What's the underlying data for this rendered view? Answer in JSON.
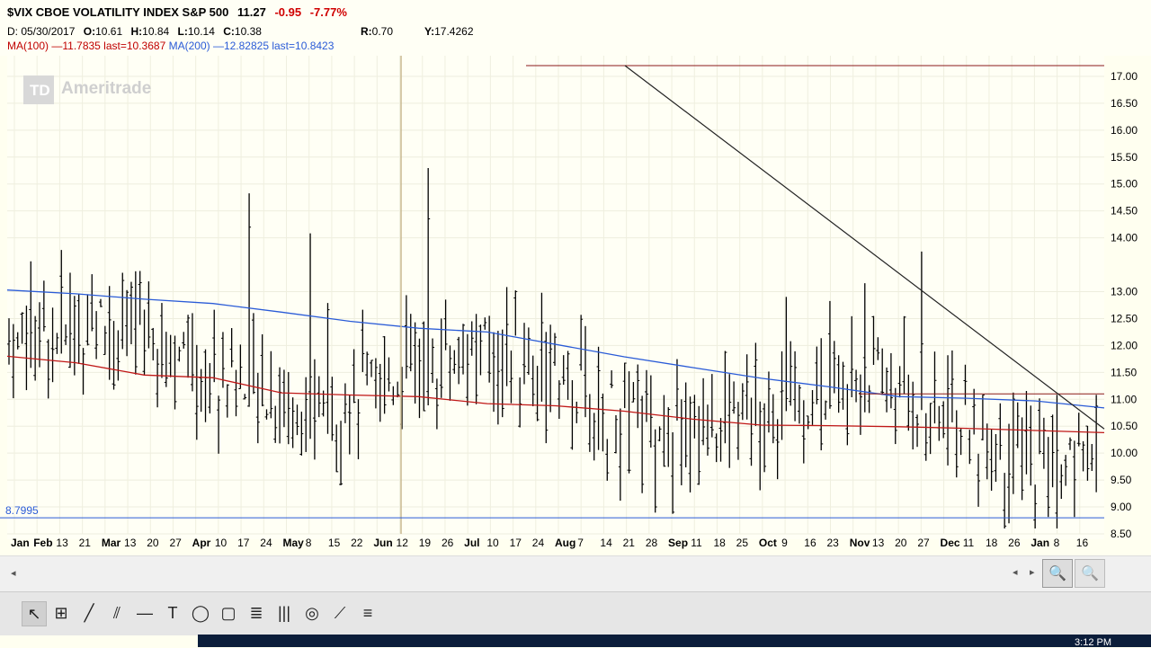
{
  "header": {
    "symbol": "$VIX CBOE VOLATILITY INDEX S&P 500",
    "last": "11.27",
    "change": "-0.95",
    "change_pct": "-7.77%",
    "date_label": "D: 05/30/2017",
    "o_label": "O:",
    "o_val": "10.61",
    "h_label": "H:",
    "h_val": "10.84",
    "l_label": "L:",
    "l_val": "10.14",
    "c_label": "C:",
    "c_val": "10.38",
    "r_label": "R:",
    "r_val": "0.70",
    "y_label": "Y:",
    "y_val": "17.4262",
    "ma100": "MA(100)",
    "ma100_vals": "—11.7835 last=10.3687",
    "ma200": "MA(200)",
    "ma200_vals": "—12.82825 last=10.8423"
  },
  "watermark": "Ameritrade",
  "colors": {
    "ma100": "#c01818",
    "ma200": "#2a5bd7",
    "bars": "#000000",
    "trend": "#222222",
    "hline": "#8b1a1a",
    "support": "#2a5bd7"
  },
  "chart_data": {
    "type": "ohlc",
    "ylim": [
      8.5,
      17.25
    ],
    "yticks": [
      "17.00",
      "16.50",
      "16.00",
      "15.50",
      "15.00",
      "14.50",
      "14.00",
      "13.00",
      "12.50",
      "12.00",
      "11.50",
      "11.00",
      "10.50",
      "10.00",
      "9.50",
      "9.00",
      "8.50"
    ],
    "support_label": "8.7995",
    "support_value": 8.7995,
    "xticks": [
      "Jan",
      "Feb",
      "13",
      "21",
      "Mar",
      "13",
      "20",
      "27",
      "Apr",
      "10",
      "17",
      "24",
      "May",
      "8",
      "15",
      "22",
      "Jun",
      "12",
      "19",
      "26",
      "Jul",
      "10",
      "17",
      "24",
      "Aug",
      "7",
      "14",
      "21",
      "28",
      "Sep",
      "11",
      "18",
      "25",
      "Oct",
      "9",
      "16",
      "23",
      "Nov",
      "13",
      "20",
      "27",
      "Dec",
      "11",
      "18",
      "26",
      "Jan",
      "8",
      "16"
    ],
    "ma100": [
      11.8,
      11.68,
      11.45,
      11.4,
      11.12,
      11.08,
      11.05,
      10.92,
      10.88,
      10.78,
      10.63,
      10.52,
      10.51,
      10.49,
      10.46,
      10.42,
      10.38
    ],
    "ma200": [
      13.03,
      12.96,
      12.86,
      12.78,
      12.62,
      12.45,
      12.32,
      12.25,
      12.02,
      11.79,
      11.59,
      11.39,
      11.23,
      11.05,
      11.02,
      10.97,
      10.84
    ],
    "trendline": {
      "from": 17.2,
      "to": 10.45
    },
    "resistance": [
      17.2,
      11.1
    ]
  },
  "toolbar": {
    "tools": [
      "cursor-icon",
      "crosshair-icon",
      "pencil-icon",
      "parallel-lines-icon",
      "horizontal-line-icon",
      "text-icon",
      "ellipse-icon",
      "rectangle-icon",
      "fibonacci-icon",
      "vertical-lines-icon",
      "gann-icon",
      "pitchfork-icon",
      "menu-icon"
    ],
    "glyphs": [
      "↖",
      "⊞",
      "╱",
      "⫽",
      "—",
      "T",
      "◯",
      "▢",
      "≣",
      "|||",
      "◎",
      "⟋",
      "≡"
    ]
  },
  "taskbar": {
    "time": "3:12 PM"
  }
}
